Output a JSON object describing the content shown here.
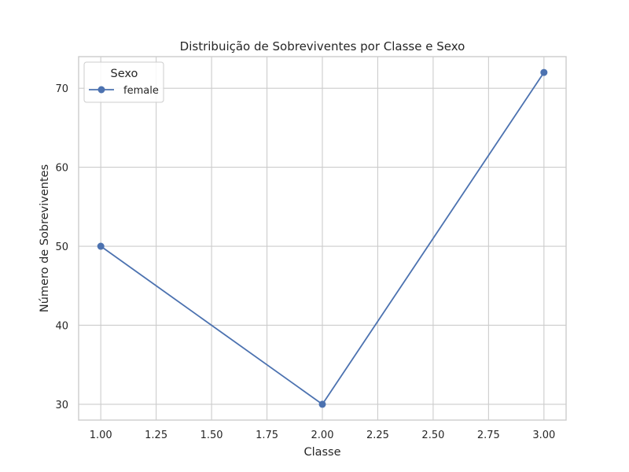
{
  "chart_data": {
    "type": "line",
    "title": "Distribuição de Sobreviventes por Classe e Sexo",
    "xlabel": "Classe",
    "ylabel": "Número de Sobreviventes",
    "xlim": [
      0.9,
      3.1
    ],
    "ylim": [
      28,
      74
    ],
    "x_ticks": [
      1.0,
      1.25,
      1.5,
      1.75,
      2.0,
      2.25,
      2.5,
      2.75,
      3.0
    ],
    "x_tick_labels": [
      "1.00",
      "1.25",
      "1.50",
      "1.75",
      "2.00",
      "2.25",
      "2.50",
      "2.75",
      "3.00"
    ],
    "y_ticks": [
      30,
      40,
      50,
      60,
      70
    ],
    "y_tick_labels": [
      "30",
      "40",
      "50",
      "60",
      "70"
    ],
    "grid": true,
    "legend": {
      "title": "Sexo",
      "placement": "top-left"
    },
    "series": [
      {
        "name": "female",
        "color": "#4c72b0",
        "marker": "circle",
        "x": [
          1.0,
          2.0,
          3.0
        ],
        "y": [
          50,
          30,
          72
        ]
      }
    ]
  }
}
